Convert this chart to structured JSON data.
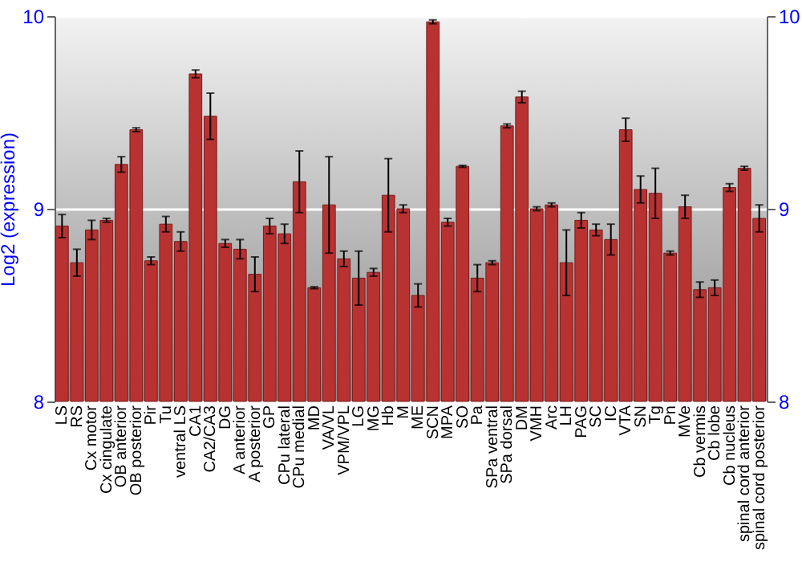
{
  "chart_data": {
    "type": "bar",
    "ylabel": "Log2 (expression)",
    "categories": [
      "LS",
      "RS",
      "Cx motor",
      "Cx cingulate",
      "OB anterior",
      "OB posterior",
      "Pir",
      "Tu",
      "ventral LS",
      "CA1",
      "CA2/CA3",
      "DG",
      "A anterior",
      "A posterior",
      "GP",
      "CPu lateral",
      "CPu medial",
      "MD",
      "VA/VL",
      "VPM/VPL",
      "LG",
      "MG",
      "Hb",
      "M",
      "ME",
      "SCN",
      "MPA",
      "SO",
      "Pa",
      "SPa ventral",
      "SPa dorsal",
      "DM",
      "VMH",
      "Arc",
      "LH",
      "PAG",
      "SC",
      "IC",
      "VTA",
      "SN",
      "Tg",
      "Pn",
      "MVe",
      "Cb vermis",
      "Cb lobe",
      "Cb nucleus",
      "spinal cord anterior",
      "spinal cord posterior"
    ],
    "series": [
      {
        "color": "#b83232",
        "values": [
          8.91,
          8.72,
          8.89,
          8.94,
          9.23,
          9.41,
          8.73,
          8.92,
          8.83,
          9.7,
          9.48,
          8.82,
          8.79,
          8.66,
          8.91,
          8.87,
          9.14,
          8.59,
          9.02,
          8.74,
          8.64,
          8.67,
          9.07,
          9.0,
          8.55,
          9.97,
          8.93,
          9.22,
          8.64,
          8.72,
          9.43,
          9.58,
          9.0,
          9.02,
          8.72,
          8.94,
          8.89,
          8.84,
          9.41,
          9.1,
          9.08,
          8.77,
          9.01,
          8.58,
          8.59,
          9.11,
          9.21,
          8.95
        ],
        "errors": [
          0.06,
          0.07,
          0.05,
          0.01,
          0.04,
          0.01,
          0.02,
          0.04,
          0.05,
          0.02,
          0.12,
          0.02,
          0.05,
          0.09,
          0.04,
          0.05,
          0.16,
          0.005,
          0.25,
          0.04,
          0.14,
          0.02,
          0.19,
          0.02,
          0.06,
          0.01,
          0.02,
          0.005,
          0.07,
          0.01,
          0.01,
          0.03,
          0.01,
          0.01,
          0.17,
          0.04,
          0.03,
          0.08,
          0.06,
          0.07,
          0.13,
          0.01,
          0.06,
          0.04,
          0.04,
          0.02,
          0.01,
          0.07
        ]
      }
    ],
    "ylim": [
      8,
      10
    ],
    "yticks": [
      8,
      9,
      10
    ],
    "y2lim": [
      8,
      10
    ],
    "y2ticks": [
      8,
      9,
      10
    ],
    "grid": "y"
  }
}
